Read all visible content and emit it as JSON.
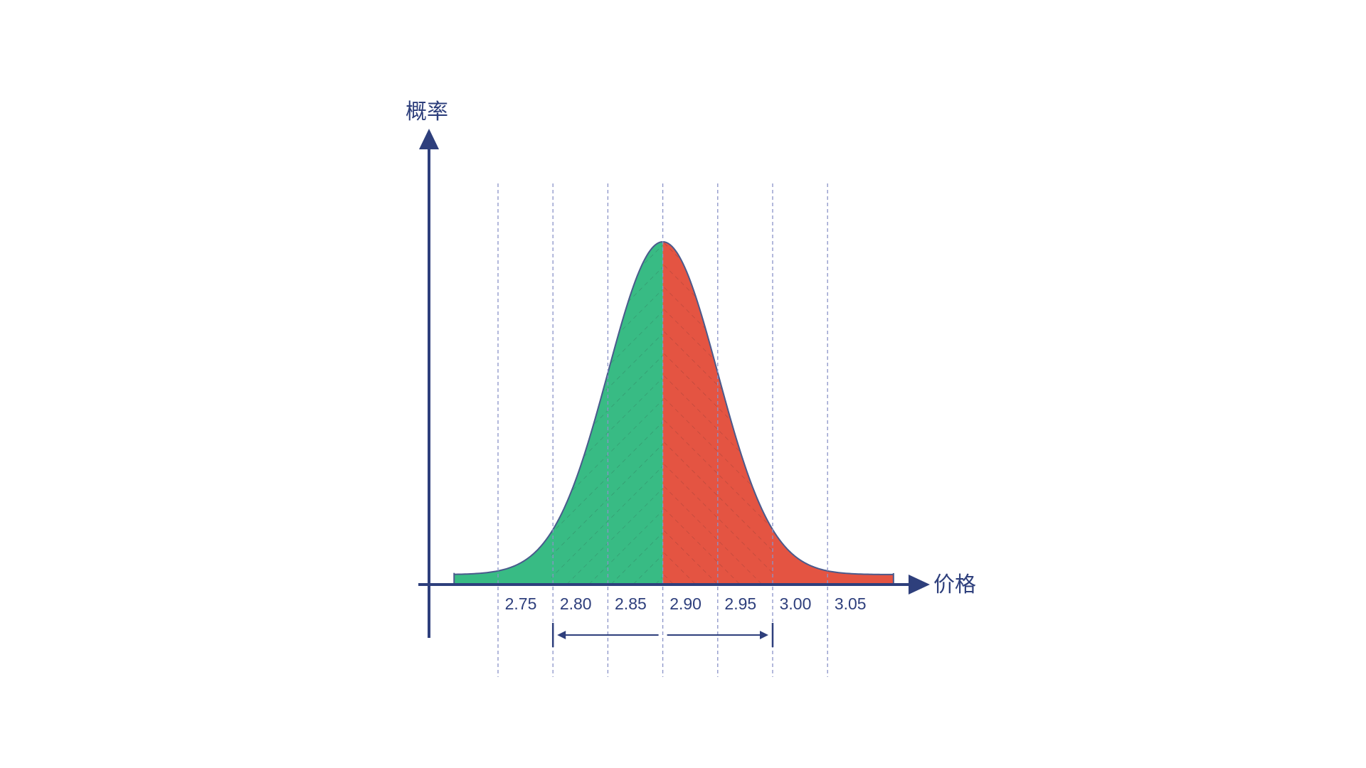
{
  "chart_data": {
    "type": "area",
    "title": "",
    "xlabel": "价格",
    "ylabel": "概率",
    "x_ticks": [
      "2.75",
      "2.80",
      "2.85",
      "2.90",
      "2.95",
      "3.00",
      "3.05"
    ],
    "x_tick_values": [
      2.75,
      2.8,
      2.85,
      2.9,
      2.95,
      3.0,
      3.05
    ],
    "xlim": [
      2.69,
      3.1
    ],
    "distribution": {
      "kind": "normal",
      "mean": 2.9,
      "std": 0.05,
      "x_start": 2.71,
      "x_end": 3.11
    },
    "regions": [
      {
        "from": 2.71,
        "to": 2.9,
        "color": "#38bb84",
        "hatch": "backslash"
      },
      {
        "from": 2.9,
        "to": 3.11,
        "color": "#e45442",
        "hatch": "slash"
      }
    ],
    "range_indicator": {
      "from": 2.8,
      "to": 3.0
    },
    "gridlines": "vertical dashed at each tick",
    "legend": "none"
  },
  "colors": {
    "axis": "#2e3f7c",
    "left_fill": "#38bb84",
    "right_fill": "#e45442",
    "curve_outline": "#4a5a8c",
    "grid": "#8a93c8"
  }
}
